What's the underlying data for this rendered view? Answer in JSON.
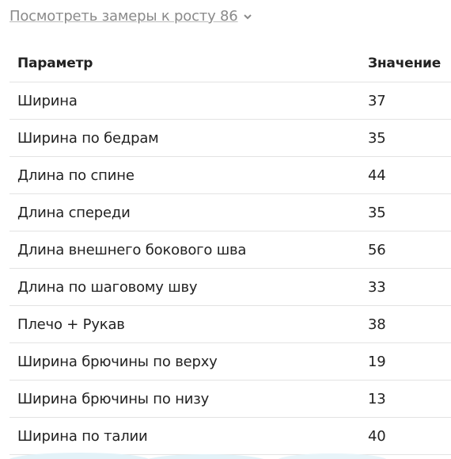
{
  "link": {
    "text": "Посмотреть замеры к росту 86"
  },
  "table": {
    "header": [
      "Параметр",
      "Значение"
    ],
    "rows": [
      [
        "Ширина",
        37
      ],
      [
        "Ширина по бедрам",
        35
      ],
      [
        "Длина по спине",
        44
      ],
      [
        "Длина спереди",
        35
      ],
      [
        "Длина внешнего бокового шва",
        56
      ],
      [
        "Длина по шаговому шву",
        33
      ],
      [
        "Плечо + Рукав",
        38
      ],
      [
        "Ширина брючины по верху",
        19
      ],
      [
        "Ширина брючины по низу",
        13
      ],
      [
        "Ширина по талии",
        40
      ]
    ]
  }
}
